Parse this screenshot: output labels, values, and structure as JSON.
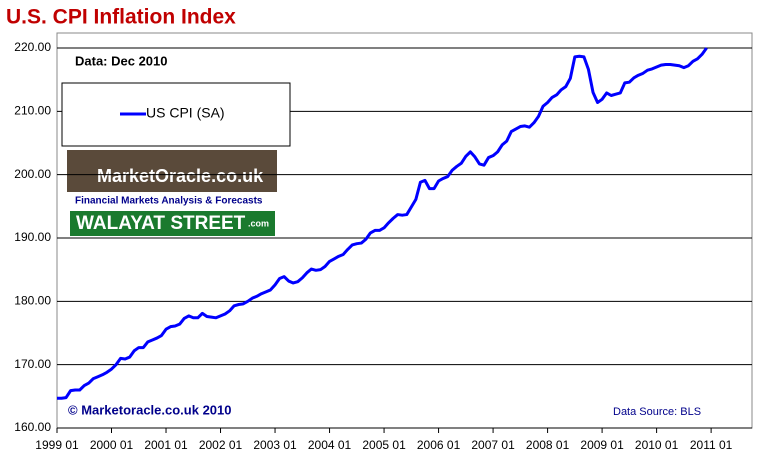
{
  "chart_data": {
    "type": "line",
    "title": "U.S. CPI Inflation Index",
    "annotations": [
      "Data: Dec 2010",
      "© Marketoracle.co.uk  2010",
      "Data Source: BLS"
    ],
    "logos": [
      "MarketOracle.co.uk",
      "Financial Markets Analysis & Forecasts",
      "WALAYAT STREET",
      ".com"
    ],
    "x": [
      "1999 01",
      "1999 02",
      "1999 03",
      "1999 04",
      "1999 05",
      "1999 06",
      "1999 07",
      "1999 08",
      "1999 09",
      "1999 10",
      "1999 11",
      "1999 12",
      "2000 01",
      "2000 02",
      "2000 03",
      "2000 04",
      "2000 05",
      "2000 06",
      "2000 07",
      "2000 08",
      "2000 09",
      "2000 10",
      "2000 11",
      "2000 12",
      "2001 01",
      "2001 02",
      "2001 03",
      "2001 04",
      "2001 05",
      "2001 06",
      "2001 07",
      "2001 08",
      "2001 09",
      "2001 10",
      "2001 11",
      "2001 12",
      "2002 01",
      "2002 02",
      "2002 03",
      "2002 04",
      "2002 05",
      "2002 06",
      "2002 07",
      "2002 08",
      "2002 09",
      "2002 10",
      "2002 11",
      "2002 12",
      "2003 01",
      "2003 02",
      "2003 03",
      "2003 04",
      "2003 05",
      "2003 06",
      "2003 07",
      "2003 08",
      "2003 09",
      "2003 10",
      "2003 11",
      "2003 12",
      "2004 01",
      "2004 02",
      "2004 03",
      "2004 04",
      "2004 05",
      "2004 06",
      "2004 07",
      "2004 08",
      "2004 09",
      "2004 10",
      "2004 11",
      "2004 12",
      "2005 01",
      "2005 02",
      "2005 03",
      "2005 04",
      "2005 05",
      "2005 06",
      "2005 07",
      "2005 08",
      "2005 09",
      "2005 10",
      "2005 11",
      "2005 12",
      "2006 01",
      "2006 02",
      "2006 03",
      "2006 04",
      "2006 05",
      "2006 06",
      "2006 07",
      "2006 08",
      "2006 09",
      "2006 10",
      "2006 11",
      "2006 12",
      "2007 01",
      "2007 02",
      "2007 03",
      "2007 04",
      "2007 05",
      "2007 06",
      "2007 07",
      "2007 08",
      "2007 09",
      "2007 10",
      "2007 11",
      "2007 12",
      "2008 01",
      "2008 02",
      "2008 03",
      "2008 04",
      "2008 05",
      "2008 06",
      "2008 07",
      "2008 08",
      "2008 09",
      "2008 10",
      "2008 11",
      "2008 12",
      "2009 01",
      "2009 02",
      "2009 03",
      "2009 04",
      "2009 05",
      "2009 06",
      "2009 07",
      "2009 08",
      "2009 09",
      "2009 10",
      "2009 11",
      "2009 12",
      "2010 01",
      "2010 02",
      "2010 03",
      "2010 04",
      "2010 05",
      "2010 06",
      "2010 07",
      "2010 08",
      "2010 09",
      "2010 10",
      "2010 11",
      "2010 12"
    ],
    "series": [
      {
        "name": "US CPI (SA)",
        "color": "#0000ff",
        "values": [
          164.7,
          164.7,
          164.8,
          165.9,
          166.0,
          166.0,
          166.7,
          167.1,
          167.8,
          168.1,
          168.4,
          168.8,
          169.3,
          170.0,
          171.0,
          170.9,
          171.2,
          172.2,
          172.7,
          172.7,
          173.6,
          173.9,
          174.2,
          174.6,
          175.6,
          176.0,
          176.1,
          176.4,
          177.3,
          177.7,
          177.4,
          177.4,
          178.1,
          177.6,
          177.5,
          177.4,
          177.7,
          178.0,
          178.5,
          179.3,
          179.5,
          179.6,
          180.0,
          180.5,
          180.8,
          181.2,
          181.5,
          181.8,
          182.6,
          183.6,
          183.9,
          183.2,
          182.9,
          183.1,
          183.7,
          184.5,
          185.1,
          184.9,
          185.0,
          185.5,
          186.3,
          186.7,
          187.1,
          187.4,
          188.2,
          188.9,
          189.1,
          189.2,
          189.8,
          190.8,
          191.2,
          191.2,
          191.6,
          192.4,
          193.1,
          193.7,
          193.6,
          193.7,
          194.9,
          196.1,
          198.8,
          199.1,
          197.8,
          197.8,
          199.0,
          199.4,
          199.7,
          200.7,
          201.3,
          201.8,
          202.9,
          203.6,
          202.8,
          201.7,
          201.5,
          202.7,
          203.0,
          203.6,
          204.7,
          205.3,
          206.8,
          207.2,
          207.6,
          207.7,
          207.5,
          208.2,
          209.2,
          210.8,
          211.4,
          212.2,
          212.6,
          213.4,
          213.9,
          215.2,
          218.6,
          218.7,
          218.6,
          216.6,
          213.0,
          211.4,
          211.9,
          212.9,
          212.5,
          212.7,
          212.9,
          214.5,
          214.6,
          215.3,
          215.7,
          216.0,
          216.5,
          216.7,
          217.0,
          217.3,
          217.4,
          217.4,
          217.3,
          217.2,
          216.9,
          217.2,
          217.9,
          218.3,
          219.0,
          220.0
        ]
      }
    ],
    "xlim": [
      "1999 01",
      "2011 10"
    ],
    "xticks": [
      "1999 01",
      "2000 01",
      "2001 01",
      "2002 01",
      "2003 01",
      "2004 01",
      "2005 01",
      "2006 01",
      "2007 01",
      "2008 01",
      "2009 01",
      "2010 01",
      "2011 01"
    ],
    "ylim": [
      160,
      220
    ],
    "yticks": [
      {
        "value": 160,
        "label": "160.00"
      },
      {
        "value": 170,
        "label": "170.00"
      },
      {
        "value": 180,
        "label": "180.00"
      },
      {
        "value": 190,
        "label": "190.00"
      },
      {
        "value": 200,
        "label": "200.00"
      },
      {
        "value": 210,
        "label": "210.00"
      },
      {
        "value": 220,
        "label": "220.00"
      }
    ],
    "grid": true,
    "legend": "upper left"
  }
}
